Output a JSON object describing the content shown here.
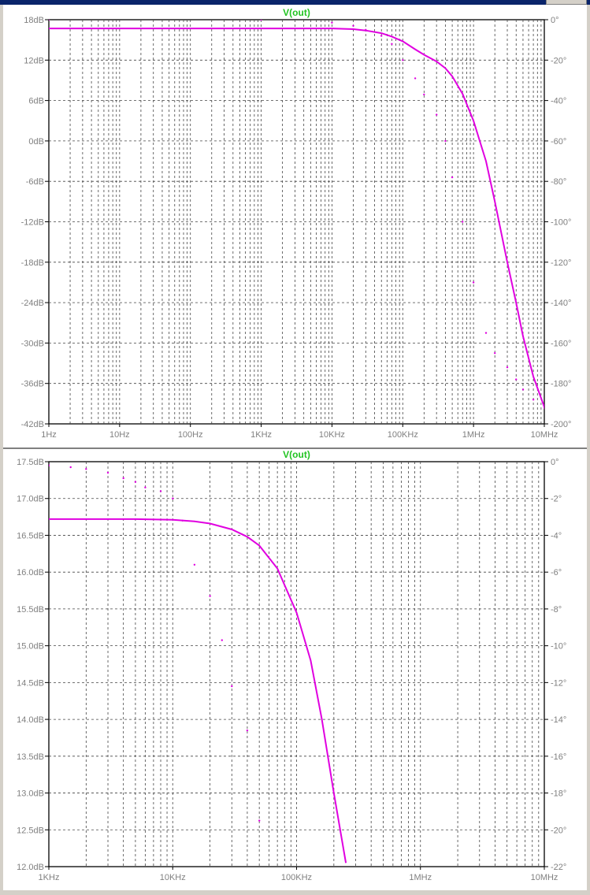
{
  "chart_data": [
    {
      "type": "line",
      "title": "V(out)",
      "x_scale": "log",
      "x_range_hz": [
        1,
        10000000
      ],
      "x_ticks": [
        "1Hz",
        "10Hz",
        "100Hz",
        "1KHz",
        "10KHz",
        "100KHz",
        "1MHz",
        "10MHz"
      ],
      "y_left_range": [
        -42,
        18
      ],
      "y_left_ticks": [
        "18dB",
        "12dB",
        "6dB",
        "0dB",
        "-6dB",
        "-12dB",
        "-18dB",
        "-24dB",
        "-30dB",
        "-36dB",
        "-42dB"
      ],
      "y_right_range": [
        -200,
        0
      ],
      "y_right_ticks": [
        "0°",
        "-20°",
        "-40°",
        "-60°",
        "-80°",
        "-100°",
        "-120°",
        "-140°",
        "-160°",
        "-180°",
        "-200°"
      ],
      "grid": true,
      "series": [
        {
          "role": "magnitude",
          "axis": "left",
          "style": "solid",
          "color": "#e000e0",
          "points": [
            [
              1,
              16.7
            ],
            [
              1000,
              16.7
            ],
            [
              10000,
              16.7
            ],
            [
              20000,
              16.6
            ],
            [
              30000,
              16.4
            ],
            [
              50000,
              16.0
            ],
            [
              70000,
              15.5
            ],
            [
              100000,
              14.8
            ],
            [
              150000,
              13.6
            ],
            [
              200000,
              12.8
            ],
            [
              300000,
              11.8
            ],
            [
              400000,
              10.8
            ],
            [
              500000,
              9.6
            ],
            [
              700000,
              7.0
            ],
            [
              1000000,
              3.0
            ],
            [
              1500000,
              -3.0
            ],
            [
              2000000,
              -9.0
            ],
            [
              3000000,
              -18.0
            ],
            [
              4000000,
              -24.0
            ],
            [
              5000000,
              -29.0
            ],
            [
              7000000,
              -35.0
            ],
            [
              10000000,
              -39.5
            ]
          ]
        },
        {
          "role": "phase",
          "axis": "right",
          "style": "dotted",
          "color": "#e000e0",
          "points": [
            [
              1,
              0
            ],
            [
              1000,
              0
            ],
            [
              10000,
              -1.5
            ],
            [
              20000,
              -3
            ],
            [
              30000,
              -5
            ],
            [
              50000,
              -8
            ],
            [
              70000,
              -12
            ],
            [
              100000,
              -20
            ],
            [
              150000,
              -29
            ],
            [
              200000,
              -37
            ],
            [
              300000,
              -47
            ],
            [
              400000,
              -60
            ],
            [
              500000,
              -78
            ],
            [
              700000,
              -100
            ],
            [
              1000000,
              -130
            ],
            [
              1500000,
              -155
            ],
            [
              2000000,
              -165
            ],
            [
              3000000,
              -172
            ],
            [
              4000000,
              -178
            ],
            [
              5000000,
              -183
            ],
            [
              7000000,
              -188
            ],
            [
              10000000,
              -192
            ]
          ]
        }
      ]
    },
    {
      "type": "line",
      "title": "V(out)",
      "x_scale": "log",
      "x_range_hz": [
        1000,
        10000000
      ],
      "x_ticks": [
        "1KHz",
        "10KHz",
        "100KHz",
        "1MHz",
        "10MHz"
      ],
      "y_left_range": [
        12,
        17.5
      ],
      "y_left_ticks": [
        "17.5dB",
        "17.0dB",
        "16.5dB",
        "16.0dB",
        "15.5dB",
        "15.0dB",
        "14.5dB",
        "14.0dB",
        "13.5dB",
        "13.0dB",
        "12.5dB",
        "12.0dB"
      ],
      "y_right_range": [
        -22,
        0
      ],
      "y_right_ticks": [
        "0°",
        "-2°",
        "-4°",
        "-6°",
        "-8°",
        "-10°",
        "-12°",
        "-14°",
        "-16°",
        "-18°",
        "-20°",
        "-22°"
      ],
      "grid": true,
      "series": [
        {
          "role": "magnitude",
          "axis": "left",
          "style": "solid",
          "color": "#e000e0",
          "points": [
            [
              1000,
              16.72
            ],
            [
              5000,
              16.72
            ],
            [
              10000,
              16.71
            ],
            [
              15000,
              16.69
            ],
            [
              20000,
              16.66
            ],
            [
              30000,
              16.58
            ],
            [
              40000,
              16.48
            ],
            [
              50000,
              16.36
            ],
            [
              70000,
              16.05
            ],
            [
              100000,
              15.45
            ],
            [
              130000,
              14.8
            ],
            [
              160000,
              14.0
            ],
            [
              200000,
              13.0
            ],
            [
              250000,
              12.05
            ]
          ]
        },
        {
          "role": "phase",
          "axis": "right",
          "style": "dotted",
          "color": "#e000e0",
          "points": [
            [
              1000,
              -0.2
            ],
            [
              1500,
              -0.3
            ],
            [
              2000,
              -0.4
            ],
            [
              3000,
              -0.6
            ],
            [
              4000,
              -0.9
            ],
            [
              5000,
              -1.1
            ],
            [
              6000,
              -1.4
            ],
            [
              8000,
              -1.6
            ],
            [
              10000,
              -2.0
            ],
            [
              12000,
              -3.2
            ],
            [
              15000,
              -5.6
            ],
            [
              20000,
              -7.3
            ],
            [
              25000,
              -9.7
            ],
            [
              30000,
              -12.2
            ],
            [
              40000,
              -14.6
            ],
            [
              50000,
              -19.5
            ]
          ]
        }
      ]
    }
  ]
}
